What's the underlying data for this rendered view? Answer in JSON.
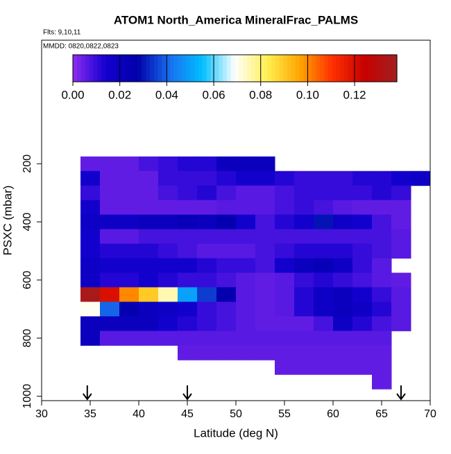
{
  "chart_data": {
    "type": "heatmap",
    "title": "ATOM1 North_America MineralFrac_PALMS",
    "subtitle": "Flts: 9,10,11",
    "annotation": "MMDD: 0820,0822,0823",
    "x_label": "Latitude (deg N)",
    "y_label": "PSXC (mbar)",
    "xlim": [
      30,
      70
    ],
    "xticks": [
      30,
      35,
      40,
      45,
      50,
      55,
      60,
      65,
      70
    ],
    "ylim": [
      1015,
      -225
    ],
    "yticks": [
      200,
      400,
      600,
      800,
      1000
    ],
    "x_edges": [
      34,
      36,
      38,
      40,
      42,
      44,
      46,
      48,
      50,
      52,
      54,
      56,
      58,
      60,
      62,
      64,
      66,
      68,
      70
    ],
    "y_edges": [
      175,
      225,
      275,
      325,
      375,
      425,
      475,
      525,
      575,
      625,
      675,
      725,
      775,
      825,
      875,
      925,
      975
    ],
    "values": [
      [
        0.005,
        0.005,
        0.005,
        0.008,
        0.01,
        0.012,
        0.012,
        0.02,
        0.02,
        0.02,
        null,
        null,
        null,
        null,
        null,
        null,
        null,
        null
      ],
      [
        0.015,
        0.005,
        0.005,
        0.005,
        0.01,
        0.01,
        0.01,
        0.012,
        0.015,
        0.015,
        0.012,
        0.01,
        0.01,
        0.01,
        0.012,
        0.012,
        0.015,
        0.018
      ],
      [
        0.01,
        0.005,
        0.005,
        0.005,
        0.008,
        0.01,
        0.012,
        0.008,
        0.006,
        0.006,
        0.008,
        0.01,
        0.01,
        0.01,
        0.01,
        0.012,
        0.01,
        null
      ],
      [
        0.015,
        0.005,
        0.005,
        0.005,
        0.005,
        0.005,
        0.005,
        0.006,
        0.006,
        0.006,
        0.008,
        0.01,
        0.008,
        0.006,
        0.005,
        0.005,
        0.005,
        null
      ],
      [
        0.018,
        0.018,
        0.018,
        0.02,
        0.02,
        0.022,
        0.02,
        0.025,
        0.015,
        0.008,
        0.012,
        0.015,
        0.03,
        0.018,
        0.015,
        0.008,
        0.005,
        null
      ],
      [
        0.015,
        0.006,
        0.006,
        0.008,
        0.008,
        0.008,
        0.008,
        0.008,
        0.008,
        0.008,
        0.008,
        0.008,
        0.008,
        0.008,
        0.008,
        0.008,
        0.006,
        null
      ],
      [
        0.015,
        0.012,
        0.012,
        0.012,
        0.01,
        0.008,
        0.006,
        0.006,
        0.006,
        0.008,
        0.01,
        0.012,
        0.012,
        0.012,
        0.01,
        0.008,
        0.006,
        null
      ],
      [
        0.018,
        0.015,
        0.015,
        0.015,
        0.015,
        0.015,
        0.012,
        0.01,
        0.01,
        0.008,
        0.015,
        0.02,
        0.022,
        0.018,
        0.01,
        0.006,
        null,
        null
      ],
      [
        0.018,
        0.012,
        0.012,
        0.015,
        0.012,
        0.01,
        0.01,
        0.008,
        0.006,
        0.005,
        0.006,
        0.01,
        0.012,
        0.01,
        0.008,
        0.006,
        0.005,
        null
      ],
      [
        0.135,
        0.12,
        0.1,
        0.09,
        0.075,
        0.05,
        0.035,
        0.025,
        0.006,
        0.005,
        0.006,
        0.012,
        0.018,
        0.02,
        0.015,
        0.01,
        0.006,
        null
      ],
      [
        0.07,
        0.04,
        0.025,
        0.02,
        0.018,
        0.015,
        0.01,
        0.008,
        0.006,
        0.005,
        0.006,
        0.012,
        0.018,
        0.02,
        0.018,
        0.012,
        0.006,
        null
      ],
      [
        0.02,
        0.02,
        0.02,
        0.02,
        0.015,
        0.012,
        0.01,
        0.008,
        0.006,
        0.005,
        0.005,
        0.005,
        0.008,
        0.018,
        0.012,
        0.008,
        0.006,
        null
      ],
      [
        0.02,
        0.006,
        0.006,
        0.006,
        0.006,
        0.006,
        0.006,
        0.006,
        0.006,
        0.006,
        0.006,
        0.006,
        0.006,
        0.006,
        0.006,
        0.006,
        null,
        null
      ],
      [
        null,
        null,
        null,
        null,
        null,
        0.005,
        0.005,
        0.005,
        0.005,
        0.005,
        0.005,
        0.005,
        0.005,
        0.005,
        0.005,
        0.005,
        null,
        null
      ],
      [
        null,
        null,
        null,
        null,
        null,
        null,
        null,
        null,
        null,
        null,
        0.005,
        0.005,
        0.005,
        0.005,
        0.005,
        0.005,
        null,
        null
      ],
      [
        null,
        null,
        null,
        null,
        null,
        null,
        null,
        null,
        null,
        null,
        null,
        null,
        null,
        null,
        null,
        0.005,
        null,
        null
      ]
    ],
    "clim": [
      0,
      0.138
    ],
    "cticks": [
      {
        "value": 0,
        "label": "0.00"
      },
      {
        "value": 0.02,
        "label": "0.02"
      },
      {
        "value": 0.04,
        "label": "0.04"
      },
      {
        "value": 0.06,
        "label": "0.06"
      },
      {
        "value": 0.08,
        "label": "0.08"
      },
      {
        "value": 0.1,
        "label": "0.10"
      },
      {
        "value": 0.12,
        "label": "0.12"
      }
    ],
    "colors": [
      "#8c2cf0",
      "#1400d0",
      "#0000a8",
      "#1870f0",
      "#00bfff",
      "#ffffff",
      "#fff050",
      "#ffa500",
      "#ff3000",
      "#c80000",
      "#a02020"
    ],
    "arrows": [
      34.7,
      45,
      67
    ]
  }
}
